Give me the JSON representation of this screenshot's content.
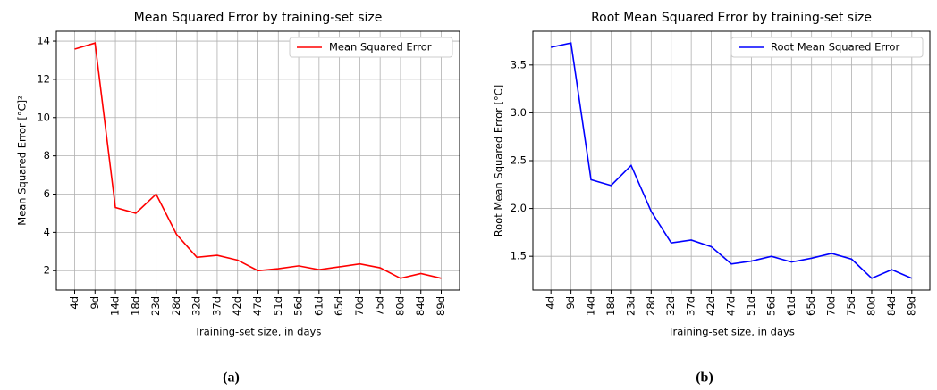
{
  "chart_data": [
    {
      "type": "line",
      "title": "Mean Squared Error by training-set size",
      "x_label": "Training-set size, in days",
      "y_label": "Mean Squared Error [°C]²",
      "categories": [
        "4d",
        "9d",
        "14d",
        "18d",
        "23d",
        "28d",
        "32d",
        "37d",
        "42d",
        "47d",
        "51d",
        "56d",
        "61d",
        "65d",
        "70d",
        "75d",
        "80d",
        "84d",
        "89d"
      ],
      "series": [
        {
          "name": "Mean Squared Error",
          "color": "#ff0000",
          "values": [
            13.58,
            13.9,
            5.3,
            5.0,
            6.0,
            3.9,
            2.7,
            2.8,
            2.55,
            2.0,
            2.1,
            2.25,
            2.05,
            2.2,
            2.35,
            2.15,
            1.6,
            1.85,
            1.6
          ]
        }
      ],
      "ylim": [
        0.985,
        14.515
      ],
      "yticks": [
        2,
        4,
        6,
        8,
        10,
        12,
        14
      ],
      "grid": true,
      "legend": "upper right",
      "caption": "(a)"
    },
    {
      "type": "line",
      "title": "Root Mean Squared Error by training-set size",
      "x_label": "Training-set size, in days",
      "y_label": "Root Mean Squared Error [°C]",
      "categories": [
        "4d",
        "9d",
        "14d",
        "18d",
        "23d",
        "28d",
        "32d",
        "37d",
        "42d",
        "47d",
        "51d",
        "56d",
        "61d",
        "65d",
        "70d",
        "75d",
        "80d",
        "84d",
        "89d"
      ],
      "series": [
        {
          "name": "Root Mean Squared Error",
          "color": "#0000ff",
          "values": [
            3.685,
            3.73,
            2.3,
            2.24,
            2.45,
            1.97,
            1.64,
            1.67,
            1.6,
            1.42,
            1.45,
            1.5,
            1.44,
            1.48,
            1.53,
            1.47,
            1.27,
            1.36,
            1.27
          ]
        }
      ],
      "ylim": [
        1.147,
        3.853
      ],
      "yticks": [
        1.5,
        {
          "value": 2,
          "label": "2.0"
        },
        2.5,
        {
          "value": 3,
          "label": "3.0"
        },
        3.5
      ],
      "grid": true,
      "legend": "upper right",
      "caption": "(b)"
    }
  ]
}
